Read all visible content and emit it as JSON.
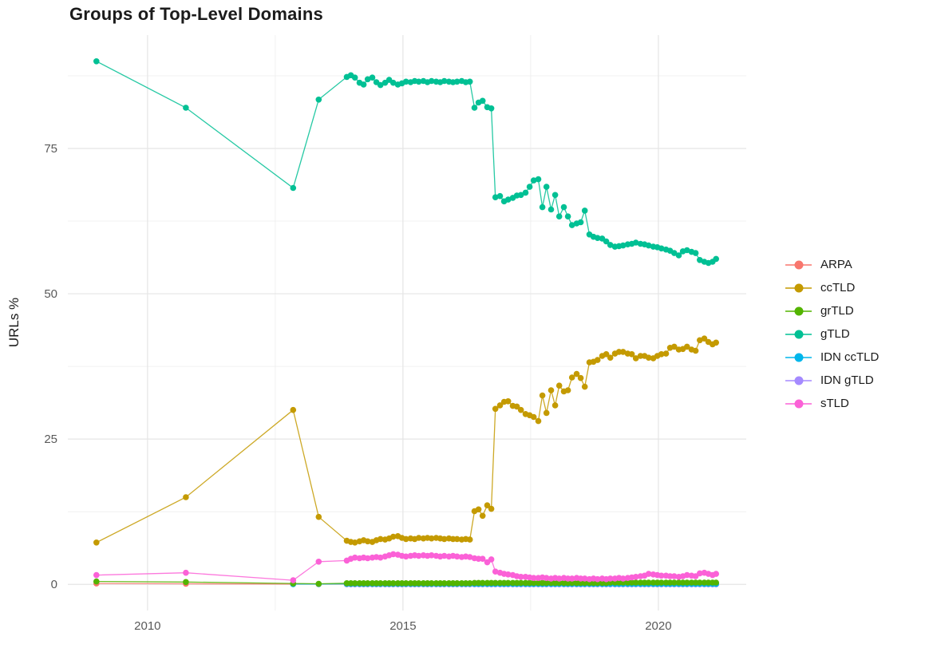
{
  "chart_data": {
    "type": "line",
    "title": "Groups of Top-Level Domains",
    "xlabel": "",
    "ylabel": "URLs %",
    "x_tick_values": [
      2010,
      2015,
      2020
    ],
    "x_tick_labels": [
      "2010",
      "2015",
      "2020"
    ],
    "x_minor_ticks": [
      2012.5,
      2017.5
    ],
    "y_tick_values": [
      0,
      25,
      50,
      75
    ],
    "y_tick_labels": [
      "0",
      "25",
      "50",
      "75"
    ],
    "y_minor_ticks": [
      12.5,
      37.5,
      62.5,
      87.5
    ],
    "xlim": [
      2008.44,
      2021.72
    ],
    "ylim": [
      -4.5,
      94.5
    ],
    "grid": true,
    "legend_position": "right",
    "point_shape": "circle",
    "axis_text_color": "#595959",
    "grid_major_color": "#e5e5e5",
    "grid_minor_color": "#f0f0f0",
    "x_dense": [
      2013.9,
      2013.98,
      2014.06,
      2014.15,
      2014.23,
      2014.31,
      2014.4,
      2014.48,
      2014.56,
      2014.65,
      2014.73,
      2014.81,
      2014.9,
      2014.98,
      2015.06,
      2015.15,
      2015.23,
      2015.31,
      2015.4,
      2015.48,
      2015.56,
      2015.65,
      2015.73,
      2015.81,
      2015.9,
      2015.98,
      2016.06,
      2016.15,
      2016.23,
      2016.31,
      2016.4,
      2016.48,
      2016.56,
      2016.65,
      2016.73,
      2016.81,
      2016.9,
      2016.98,
      2017.06,
      2017.15,
      2017.23,
      2017.31,
      2017.4,
      2017.48,
      2017.56,
      2017.65,
      2017.73,
      2017.81,
      2017.9,
      2017.98,
      2018.06,
      2018.15,
      2018.23,
      2018.31,
      2018.4,
      2018.48,
      2018.56,
      2018.65,
      2018.73,
      2018.81,
      2018.9,
      2018.98,
      2019.06,
      2019.15,
      2019.23,
      2019.31,
      2019.4,
      2019.48,
      2019.56,
      2019.65,
      2019.73,
      2019.81,
      2019.9,
      2019.98,
      2020.06,
      2020.15,
      2020.23,
      2020.31,
      2020.4,
      2020.48,
      2020.56,
      2020.65,
      2020.73,
      2020.81,
      2020.9,
      2020.98,
      2021.06,
      2021.13
    ],
    "series": [
      {
        "name": "ARPA",
        "color": "#F8766D",
        "sparse_points": [
          [
            2009,
            0.15
          ],
          [
            2010.75,
            0.1
          ],
          [
            2012.85,
            0.06
          ],
          [
            2013.35,
            0.05
          ]
        ],
        "dense_y": [
          0.05,
          0.05,
          0.05,
          0.05,
          0.05,
          0.05,
          0.05,
          0.05,
          0.05,
          0.05,
          0.05,
          0.05,
          0.05,
          0.05,
          0.05,
          0.05,
          0.05,
          0.05,
          0.05,
          0.05,
          0.05,
          0.05,
          0.05,
          0.05,
          0.05,
          0.05,
          0.05,
          0.05,
          0.05,
          0.05,
          0.05,
          0.05,
          0.05,
          0.05,
          0.05,
          0.05,
          0.05,
          0.05,
          0.05,
          0.05,
          0.05,
          0.05,
          0.05,
          0.05,
          0.05,
          0.05,
          0.05,
          0.05,
          0.05,
          0.05,
          0.05,
          0.05,
          0.05,
          0.05,
          0.05,
          0.05,
          0.05,
          0.05,
          0.05,
          0.05,
          0.05,
          0.05,
          0.05,
          0.05,
          0.05,
          0.05,
          0.05,
          0.05,
          0.05,
          0.05,
          0.05,
          0.05,
          0.05,
          0.05,
          0.05,
          0.05,
          0.05,
          0.05,
          0.05,
          0.05,
          0.05,
          0.05,
          0.05,
          0.05,
          0.05,
          0.05,
          0.05,
          0.05
        ]
      },
      {
        "name": "ccTLD",
        "color": "#C49A00",
        "sparse_points": [
          [
            2009,
            7.2
          ],
          [
            2010.75,
            15.0
          ],
          [
            2012.85,
            30.0
          ],
          [
            2013.35,
            11.6
          ]
        ],
        "dense_y": [
          7.5,
          7.3,
          7.2,
          7.4,
          7.6,
          7.4,
          7.3,
          7.6,
          7.8,
          7.7,
          7.9,
          8.2,
          8.3,
          8.0,
          7.8,
          7.9,
          7.8,
          8.0,
          7.9,
          8.0,
          7.9,
          8.0,
          7.9,
          7.8,
          7.9,
          7.8,
          7.8,
          7.7,
          7.8,
          7.7,
          12.6,
          12.9,
          11.8,
          13.6,
          13.0,
          30.2,
          30.8,
          31.4,
          31.5,
          30.7,
          30.6,
          30.0,
          29.3,
          29.1,
          28.8,
          28.1,
          32.5,
          29.5,
          33.4,
          30.8,
          34.2,
          33.2,
          33.4,
          35.6,
          36.2,
          35.5,
          34.0,
          38.2,
          38.3,
          38.6,
          39.3,
          39.6,
          39.0,
          39.7,
          40.0,
          40.0,
          39.7,
          39.6,
          38.9,
          39.3,
          39.3,
          39.0,
          38.9,
          39.3,
          39.6,
          39.7,
          40.7,
          40.9,
          40.4,
          40.5,
          40.9,
          40.4,
          40.2,
          42.0,
          42.3,
          41.7,
          41.3,
          41.6
        ]
      },
      {
        "name": "grTLD",
        "color": "#53B400",
        "sparse_points": [
          [
            2009,
            0.5
          ],
          [
            2010.75,
            0.4
          ],
          [
            2012.85,
            0.15
          ],
          [
            2013.35,
            0.1
          ]
        ],
        "dense_y": [
          0.2,
          0.2,
          0.2,
          0.2,
          0.2,
          0.2,
          0.2,
          0.2,
          0.2,
          0.2,
          0.2,
          0.2,
          0.2,
          0.2,
          0.2,
          0.2,
          0.2,
          0.2,
          0.2,
          0.2,
          0.2,
          0.2,
          0.2,
          0.2,
          0.2,
          0.2,
          0.2,
          0.2,
          0.2,
          0.2,
          0.25,
          0.25,
          0.25,
          0.25,
          0.25,
          0.25,
          0.25,
          0.25,
          0.25,
          0.25,
          0.25,
          0.25,
          0.25,
          0.25,
          0.25,
          0.25,
          0.25,
          0.25,
          0.25,
          0.25,
          0.25,
          0.25,
          0.25,
          0.25,
          0.25,
          0.25,
          0.25,
          0.25,
          0.25,
          0.25,
          0.25,
          0.25,
          0.3,
          0.3,
          0.3,
          0.3,
          0.3,
          0.3,
          0.3,
          0.3,
          0.3,
          0.3,
          0.3,
          0.3,
          0.3,
          0.3,
          0.3,
          0.3,
          0.3,
          0.3,
          0.3,
          0.3,
          0.3,
          0.3,
          0.3,
          0.3,
          0.3,
          0.3
        ]
      },
      {
        "name": "gTLD",
        "color": "#00C094",
        "sparse_points": [
          [
            2009,
            90.0
          ],
          [
            2010.75,
            82.0
          ],
          [
            2012.85,
            68.2
          ],
          [
            2013.35,
            83.4
          ]
        ],
        "dense_y": [
          87.3,
          87.6,
          87.2,
          86.3,
          86.0,
          86.9,
          87.2,
          86.4,
          85.9,
          86.3,
          86.8,
          86.3,
          86.0,
          86.2,
          86.5,
          86.4,
          86.6,
          86.5,
          86.6,
          86.4,
          86.6,
          86.5,
          86.4,
          86.6,
          86.5,
          86.4,
          86.5,
          86.6,
          86.4,
          86.5,
          82.0,
          82.9,
          83.2,
          82.1,
          81.9,
          66.6,
          66.8,
          65.9,
          66.2,
          66.5,
          66.9,
          67.0,
          67.4,
          68.4,
          69.5,
          69.7,
          64.9,
          68.4,
          64.5,
          67.0,
          63.3,
          64.9,
          63.3,
          61.8,
          62.1,
          62.3,
          64.3,
          60.2,
          59.8,
          59.6,
          59.5,
          59.0,
          58.4,
          58.1,
          58.2,
          58.3,
          58.5,
          58.6,
          58.8,
          58.6,
          58.5,
          58.3,
          58.1,
          58.0,
          57.8,
          57.6,
          57.4,
          57.0,
          56.6,
          57.3,
          57.5,
          57.2,
          57.0,
          55.8,
          55.5,
          55.3,
          55.5,
          56.0
        ]
      },
      {
        "name": "IDN ccTLD",
        "color": "#00B6EB",
        "sparse_points": [
          [
            2012.85,
            0.05
          ],
          [
            2013.35,
            0.06
          ]
        ],
        "dense_y": [
          0.08,
          0.08,
          0.08,
          0.08,
          0.08,
          0.08,
          0.08,
          0.08,
          0.08,
          0.08,
          0.08,
          0.08,
          0.08,
          0.08,
          0.08,
          0.08,
          0.08,
          0.08,
          0.08,
          0.08,
          0.08,
          0.08,
          0.08,
          0.08,
          0.08,
          0.08,
          0.08,
          0.08,
          0.08,
          0.08,
          0.08,
          0.08,
          0.08,
          0.08,
          0.08,
          0.08,
          0.08,
          0.08,
          0.08,
          0.08,
          0.08,
          0.08,
          0.08,
          0.08,
          0.08,
          0.08,
          0.08,
          0.08,
          0.08,
          0.08,
          0.08,
          0.08,
          0.08,
          0.08,
          0.08,
          0.08,
          0.08,
          0.08,
          0.08,
          0.08,
          0.08,
          0.08,
          0.08,
          0.08,
          0.08,
          0.08,
          0.08,
          0.08,
          0.08,
          0.08,
          0.08,
          0.08,
          0.08,
          0.08,
          0.08,
          0.08,
          0.08,
          0.08,
          0.08,
          0.08,
          0.08,
          0.08,
          0.08,
          0.08,
          0.08,
          0.08,
          0.08,
          0.08
        ]
      },
      {
        "name": "IDN gTLD",
        "color": "#A58AFF",
        "sparse_points": [],
        "dense_y": [
          0.02,
          0.02,
          0.02,
          0.02,
          0.02,
          0.02,
          0.02,
          0.02,
          0.02,
          0.02,
          0.02,
          0.02,
          0.02,
          0.02,
          0.02,
          0.02,
          0.02,
          0.02,
          0.02,
          0.02,
          0.02,
          0.02,
          0.02,
          0.02,
          0.02,
          0.02,
          0.02,
          0.02,
          0.02,
          0.02,
          0.02,
          0.02,
          0.02,
          0.02,
          0.02,
          0.02,
          0.02,
          0.02,
          0.02,
          0.02,
          0.02,
          0.02,
          0.02,
          0.02,
          0.02,
          0.02,
          0.02,
          0.02,
          0.02,
          0.02,
          0.02,
          0.02,
          0.02,
          0.02,
          0.02,
          0.02,
          0.02,
          0.02,
          0.02,
          0.02,
          0.02,
          0.02,
          0.02,
          0.02,
          0.02,
          0.02,
          0.02,
          0.02,
          0.02,
          0.02,
          0.02,
          0.02,
          0.02,
          0.02,
          0.02,
          0.02,
          0.02,
          0.02,
          0.02,
          0.02,
          0.02,
          0.02,
          0.02,
          0.02,
          0.02,
          0.02,
          0.02,
          0.02
        ]
      },
      {
        "name": "sTLD",
        "color": "#FB61D7",
        "sparse_points": [
          [
            2009,
            1.6
          ],
          [
            2010.75,
            2.0
          ],
          [
            2012.85,
            0.7
          ],
          [
            2013.35,
            3.9
          ]
        ],
        "dense_y": [
          4.1,
          4.4,
          4.6,
          4.5,
          4.6,
          4.5,
          4.6,
          4.7,
          4.6,
          4.8,
          5.0,
          5.2,
          5.1,
          4.9,
          4.8,
          4.9,
          5.0,
          4.9,
          5.0,
          4.9,
          5.0,
          4.9,
          4.8,
          4.9,
          4.8,
          4.9,
          4.8,
          4.7,
          4.8,
          4.7,
          4.5,
          4.4,
          4.4,
          3.8,
          4.3,
          2.2,
          2.0,
          1.8,
          1.7,
          1.6,
          1.4,
          1.3,
          1.3,
          1.2,
          1.1,
          1.1,
          1.2,
          1.1,
          1.0,
          1.1,
          1.0,
          1.1,
          1.0,
          1.0,
          1.1,
          1.0,
          1.0,
          0.9,
          1.0,
          0.9,
          1.0,
          0.9,
          1.0,
          1.0,
          1.1,
          1.0,
          1.1,
          1.2,
          1.3,
          1.4,
          1.5,
          1.8,
          1.7,
          1.6,
          1.5,
          1.5,
          1.4,
          1.4,
          1.3,
          1.4,
          1.6,
          1.5,
          1.4,
          1.9,
          2.0,
          1.8,
          1.6,
          1.8
        ]
      }
    ]
  }
}
